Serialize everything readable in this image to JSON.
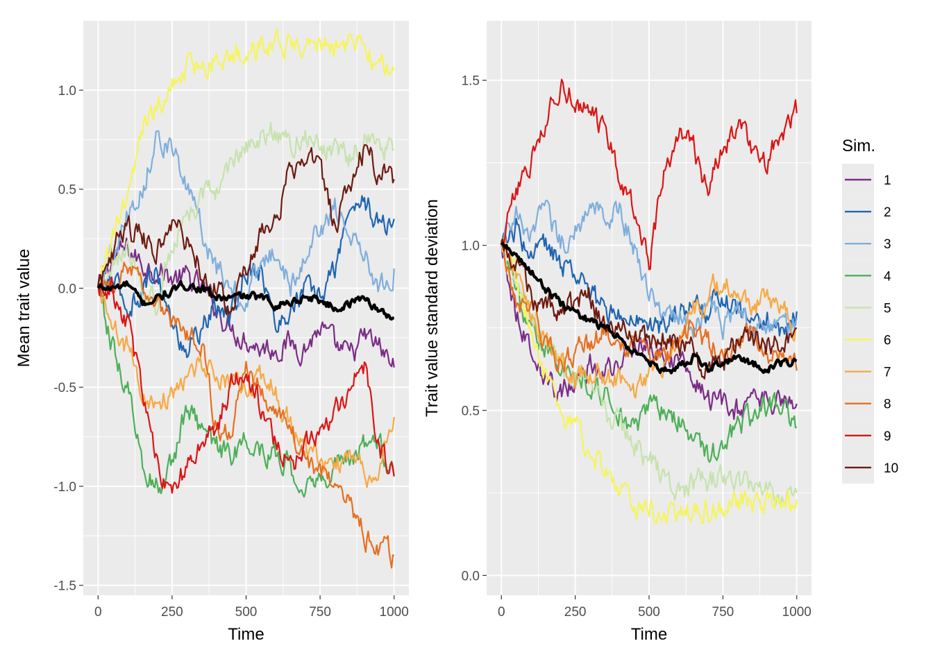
{
  "colors": {
    "panel_bg": "#EBEBEB",
    "grid": "#FFFFFF",
    "mean_line": "#000000",
    "tick_text": "#4D4D4D",
    "axis_title": "#000000"
  },
  "legend": {
    "title": "Sim.",
    "placement": "right",
    "entries": [
      {
        "label": "1",
        "color": "#7B2C86"
      },
      {
        "label": "2",
        "color": "#1F65B1"
      },
      {
        "label": "3",
        "color": "#7EAEDC"
      },
      {
        "label": "4",
        "color": "#4DAF58"
      },
      {
        "label": "5",
        "color": "#C7E2AE"
      },
      {
        "label": "6",
        "color": "#F6F45C"
      },
      {
        "label": "7",
        "color": "#F6A945"
      },
      {
        "label": "8",
        "color": "#E66F1F"
      },
      {
        "label": "9",
        "color": "#DA1515"
      },
      {
        "label": "10",
        "color": "#6E1A10"
      }
    ]
  },
  "chart_data": [
    {
      "type": "line",
      "xlabel": "Time",
      "ylabel": "Mean trait value",
      "xlim": [
        -50,
        1050
      ],
      "ylim": [
        -1.55,
        1.35
      ],
      "xticks": [
        0,
        250,
        500,
        750,
        1000
      ],
      "xtick_labels": [
        "0",
        "250",
        "500",
        "750",
        "1000"
      ],
      "yticks": [
        -1.5,
        -1.0,
        -0.5,
        0.0,
        0.5,
        1.0
      ],
      "ytick_labels": [
        "-1.5",
        "-1.0",
        "-0.5",
        "0.0",
        "0.5",
        "1.0"
      ],
      "grid": true,
      "x": [
        0,
        50,
        100,
        150,
        200,
        250,
        300,
        350,
        400,
        450,
        500,
        550,
        600,
        650,
        700,
        750,
        800,
        850,
        900,
        950,
        1000
      ],
      "mean": [
        0.0,
        0.0,
        0.02,
        -0.08,
        -0.05,
        -0.02,
        0.02,
        0.0,
        -0.05,
        -0.05,
        -0.04,
        -0.05,
        -0.08,
        -0.07,
        -0.04,
        -0.06,
        -0.1,
        -0.08,
        -0.04,
        -0.12,
        -0.15
      ],
      "series": [
        {
          "name": "1",
          "values": [
            0.0,
            0.15,
            0.2,
            0.12,
            0.1,
            0.05,
            0.05,
            0.0,
            -0.1,
            -0.2,
            -0.25,
            -0.3,
            -0.3,
            -0.28,
            -0.3,
            -0.2,
            -0.3,
            -0.35,
            -0.25,
            -0.3,
            -0.4
          ]
        },
        {
          "name": "2",
          "values": [
            0.0,
            0.05,
            -0.1,
            0.0,
            0.1,
            -0.2,
            -0.3,
            -0.2,
            -0.1,
            -0.15,
            0.1,
            0.1,
            -0.2,
            -0.1,
            0.0,
            -0.05,
            0.1,
            0.4,
            0.45,
            0.3,
            0.35
          ]
        },
        {
          "name": "3",
          "values": [
            0.0,
            0.2,
            0.4,
            0.5,
            0.8,
            0.7,
            0.5,
            0.3,
            0.1,
            0.0,
            -0.05,
            0.1,
            0.2,
            0.0,
            0.2,
            0.3,
            0.4,
            0.3,
            0.2,
            0.0,
            0.1
          ]
        },
        {
          "name": "4",
          "values": [
            0.0,
            -0.3,
            -0.5,
            -0.9,
            -1.0,
            -0.9,
            -0.6,
            -0.75,
            -0.8,
            -0.85,
            -0.75,
            -0.8,
            -0.85,
            -0.9,
            -1.0,
            -0.95,
            -0.9,
            -0.85,
            -0.8,
            -0.8,
            -0.95
          ]
        },
        {
          "name": "5",
          "values": [
            0.0,
            0.1,
            0.2,
            0.0,
            -0.1,
            0.2,
            0.4,
            0.45,
            0.5,
            0.6,
            0.7,
            0.75,
            0.8,
            0.75,
            0.75,
            0.7,
            0.7,
            0.65,
            0.75,
            0.7,
            0.7
          ]
        },
        {
          "name": "6",
          "values": [
            0.0,
            0.3,
            0.5,
            0.8,
            0.9,
            1.05,
            1.1,
            1.12,
            1.15,
            1.18,
            1.2,
            1.22,
            1.25,
            1.24,
            1.25,
            1.23,
            1.2,
            1.22,
            1.2,
            1.15,
            1.1
          ]
        },
        {
          "name": "7",
          "values": [
            0.0,
            -0.2,
            -0.3,
            -0.5,
            -0.6,
            -0.5,
            -0.45,
            -0.4,
            -0.45,
            -0.5,
            -0.5,
            -0.45,
            -0.5,
            -0.7,
            -0.8,
            -0.85,
            -0.9,
            -0.85,
            -0.95,
            -0.9,
            -0.65
          ]
        },
        {
          "name": "8",
          "values": [
            0.0,
            0.0,
            0.1,
            0.0,
            -0.1,
            -0.2,
            -0.25,
            -0.3,
            -0.7,
            -0.7,
            -0.4,
            -0.5,
            -0.6,
            -0.7,
            -0.85,
            -0.9,
            -1.0,
            -1.1,
            -1.25,
            -1.3,
            -1.35
          ]
        },
        {
          "name": "9",
          "values": [
            0.0,
            0.0,
            -0.2,
            -0.5,
            -0.9,
            -1.05,
            -0.9,
            -0.8,
            -0.7,
            -0.5,
            -0.4,
            -0.6,
            -0.8,
            -0.9,
            -0.8,
            -0.7,
            -0.6,
            -0.5,
            -0.4,
            -0.8,
            -0.95
          ]
        },
        {
          "name": "10",
          "values": [
            0.0,
            0.2,
            0.3,
            0.25,
            0.2,
            0.3,
            0.25,
            0.1,
            0.0,
            -0.1,
            0.1,
            0.3,
            0.35,
            0.6,
            0.7,
            0.6,
            0.3,
            0.55,
            0.7,
            0.6,
            0.55
          ]
        }
      ]
    },
    {
      "type": "line",
      "xlabel": "Time",
      "ylabel": "Trait value standard deviation",
      "xlim": [
        -50,
        1050
      ],
      "ylim": [
        -0.06,
        1.68
      ],
      "xticks": [
        0,
        250,
        500,
        750,
        1000
      ],
      "xtick_labels": [
        "0",
        "250",
        "500",
        "750",
        "1000"
      ],
      "yticks": [
        0.0,
        0.5,
        1.0,
        1.5
      ],
      "ytick_labels": [
        "0.0",
        "0.5",
        "1.0",
        "1.5"
      ],
      "grid": true,
      "x": [
        0,
        50,
        100,
        150,
        200,
        250,
        300,
        350,
        400,
        450,
        500,
        550,
        600,
        650,
        700,
        750,
        800,
        850,
        900,
        950,
        1000
      ],
      "mean": [
        1.0,
        0.97,
        0.92,
        0.87,
        0.82,
        0.8,
        0.77,
        0.75,
        0.72,
        0.68,
        0.65,
        0.62,
        0.63,
        0.66,
        0.63,
        0.64,
        0.66,
        0.64,
        0.63,
        0.64,
        0.65
      ],
      "series": [
        {
          "name": "1",
          "values": [
            1.0,
            0.8,
            0.7,
            0.6,
            0.55,
            0.6,
            0.65,
            0.6,
            0.65,
            0.7,
            0.7,
            0.65,
            0.65,
            0.6,
            0.55,
            0.5,
            0.5,
            0.5,
            0.55,
            0.52,
            0.52
          ]
        },
        {
          "name": "2",
          "values": [
            1.0,
            1.05,
            0.95,
            1.0,
            0.95,
            0.9,
            0.85,
            0.8,
            0.8,
            0.78,
            0.75,
            0.75,
            0.78,
            0.82,
            0.8,
            0.85,
            0.78,
            0.75,
            0.78,
            0.72,
            0.8
          ]
        },
        {
          "name": "3",
          "values": [
            1.0,
            1.1,
            1.05,
            1.1,
            1.0,
            1.05,
            1.1,
            1.1,
            1.1,
            1.0,
            0.85,
            0.8,
            0.8,
            0.75,
            0.8,
            0.75,
            0.8,
            0.75,
            0.75,
            0.75,
            0.78
          ]
        },
        {
          "name": "4",
          "values": [
            1.0,
            0.85,
            0.75,
            0.7,
            0.65,
            0.6,
            0.58,
            0.55,
            0.5,
            0.45,
            0.5,
            0.5,
            0.48,
            0.4,
            0.35,
            0.4,
            0.45,
            0.48,
            0.52,
            0.48,
            0.45
          ]
        },
        {
          "name": "5",
          "values": [
            1.0,
            0.9,
            0.8,
            0.7,
            0.65,
            0.6,
            0.55,
            0.5,
            0.45,
            0.4,
            0.35,
            0.3,
            0.25,
            0.28,
            0.28,
            0.3,
            0.28,
            0.28,
            0.27,
            0.25,
            0.25
          ]
        },
        {
          "name": "6",
          "values": [
            1.0,
            0.9,
            0.75,
            0.6,
            0.5,
            0.45,
            0.38,
            0.32,
            0.23,
            0.22,
            0.2,
            0.18,
            0.18,
            0.2,
            0.2,
            0.2,
            0.22,
            0.22,
            0.22,
            0.22,
            0.23
          ]
        },
        {
          "name": "7",
          "values": [
            1.0,
            0.9,
            0.8,
            0.7,
            0.65,
            0.6,
            0.62,
            0.6,
            0.6,
            0.55,
            0.6,
            0.65,
            0.7,
            0.8,
            0.85,
            0.9,
            0.85,
            0.8,
            0.85,
            0.8,
            0.75
          ]
        },
        {
          "name": "8",
          "values": [
            1.0,
            0.85,
            0.8,
            0.7,
            0.65,
            0.68,
            0.7,
            0.75,
            0.7,
            0.7,
            0.68,
            0.65,
            0.72,
            0.75,
            0.7,
            0.68,
            0.7,
            0.72,
            0.68,
            0.65,
            0.62
          ]
        },
        {
          "name": "9",
          "values": [
            1.0,
            1.15,
            1.25,
            1.35,
            1.5,
            1.45,
            1.4,
            1.35,
            1.2,
            1.1,
            0.95,
            1.2,
            1.35,
            1.3,
            1.15,
            1.3,
            1.35,
            1.3,
            1.25,
            1.35,
            1.4
          ]
        },
        {
          "name": "10",
          "values": [
            1.0,
            0.95,
            0.85,
            0.82,
            0.8,
            0.82,
            0.85,
            0.75,
            0.75,
            0.72,
            0.7,
            0.72,
            0.7,
            0.68,
            0.6,
            0.65,
            0.7,
            0.72,
            0.7,
            0.72,
            0.75
          ]
        }
      ]
    }
  ]
}
